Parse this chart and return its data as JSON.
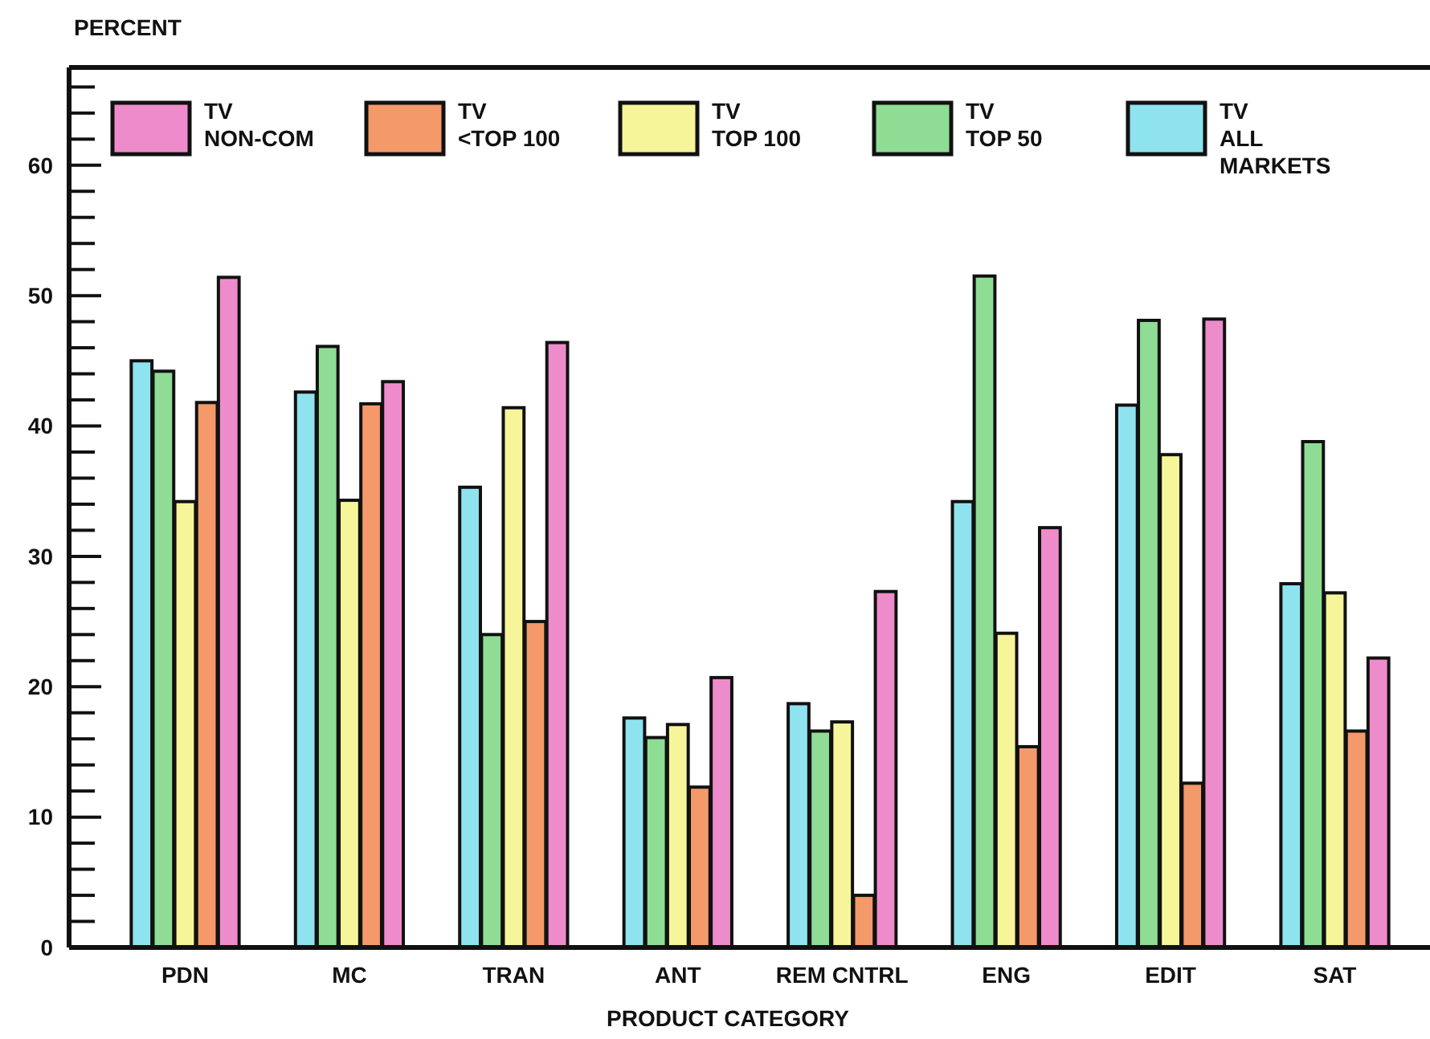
{
  "chart_data": {
    "type": "bar",
    "ylabel": "PERCENT",
    "xlabel": "PRODUCT CATEGORY",
    "categories": [
      "PDN",
      "MC",
      "TRAN",
      "ANT",
      "REM CNTRL",
      "ENG",
      "EDIT",
      "SAT"
    ],
    "series": [
      {
        "name": "TV\nALL\nMARKETS",
        "color": "#8ee3ee",
        "values": [
          45,
          42.6,
          35.3,
          17.6,
          18.7,
          34.2,
          41.6,
          27.9
        ]
      },
      {
        "name": "TV\nTOP 50",
        "color": "#8fdc95",
        "values": [
          44.2,
          46.1,
          24,
          16.1,
          16.6,
          51.5,
          48.1,
          38.8
        ]
      },
      {
        "name": "TV\nTOP 100",
        "color": "#f6f59a",
        "values": [
          34.2,
          34.3,
          41.4,
          17.1,
          17.3,
          24.1,
          37.8,
          27.2
        ]
      },
      {
        "name": "TV\n<TOP 100",
        "color": "#f3996a",
        "values": [
          41.8,
          41.7,
          25,
          12.3,
          4,
          15.4,
          12.6,
          16.6
        ]
      },
      {
        "name": "TV\nNON-COM",
        "color": "#ee8ccb",
        "values": [
          51.4,
          43.4,
          46.4,
          20.7,
          27.3,
          32.2,
          48.2,
          22.2
        ]
      }
    ],
    "ylim": [
      0,
      67.5
    ],
    "yticks": [
      0,
      {
        "value": 2,
        "label": null
      },
      {
        "value": 4,
        "label": null
      },
      {
        "value": 6,
        "label": null
      },
      {
        "value": 8,
        "label": null
      },
      10,
      {
        "value": 12,
        "label": null
      },
      {
        "value": 14,
        "label": null
      },
      {
        "value": 16,
        "label": null
      },
      {
        "value": 18,
        "label": null
      },
      20,
      {
        "value": 22,
        "label": null
      },
      {
        "value": 24,
        "label": null
      },
      {
        "value": 26,
        "label": null
      },
      {
        "value": 28,
        "label": null
      },
      30,
      {
        "value": 32,
        "label": null
      },
      {
        "value": 34,
        "label": null
      },
      {
        "value": 36,
        "label": null
      },
      {
        "value": 38,
        "label": null
      },
      40,
      {
        "value": 42,
        "label": null
      },
      {
        "value": 44,
        "label": null
      },
      {
        "value": 46,
        "label": null
      },
      {
        "value": 48,
        "label": null
      },
      50,
      {
        "value": 52,
        "label": null
      },
      {
        "value": 54,
        "label": null
      },
      {
        "value": 56,
        "label": null
      },
      {
        "value": 58,
        "label": null
      },
      60,
      {
        "value": 62,
        "label": null
      },
      {
        "value": 64,
        "label": null
      },
      {
        "value": 66,
        "label": null
      }
    ],
    "legend": "top",
    "grid": false
  }
}
